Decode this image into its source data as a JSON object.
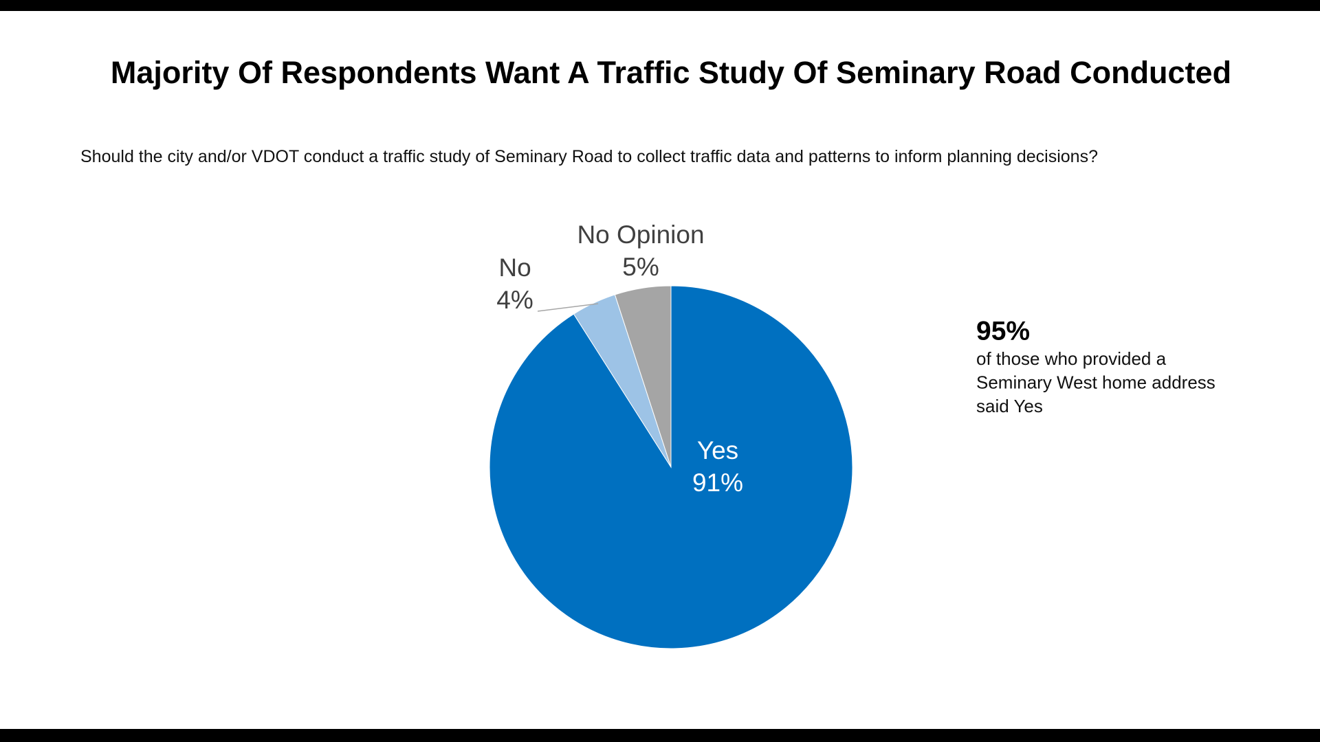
{
  "chart_data": {
    "type": "pie",
    "title": "Majority Of Respondents Want A Traffic Study Of Seminary Road Conducted",
    "subtitle": "Should the city and/or VDOT conduct a traffic study of Seminary Road to collect traffic data and patterns to inform planning decisions?",
    "categories": [
      "Yes",
      "No",
      "No Opinion"
    ],
    "values": [
      91,
      4,
      5
    ],
    "value_labels": [
      "91%",
      "4%",
      "5%"
    ],
    "colors": [
      "#0070C0",
      "#9DC3E6",
      "#A5A5A5"
    ],
    "annotation": {
      "value": 95,
      "label": "95%",
      "lines": [
        "of those who provided a",
        "Seminary West home address",
        "said Yes"
      ]
    }
  }
}
